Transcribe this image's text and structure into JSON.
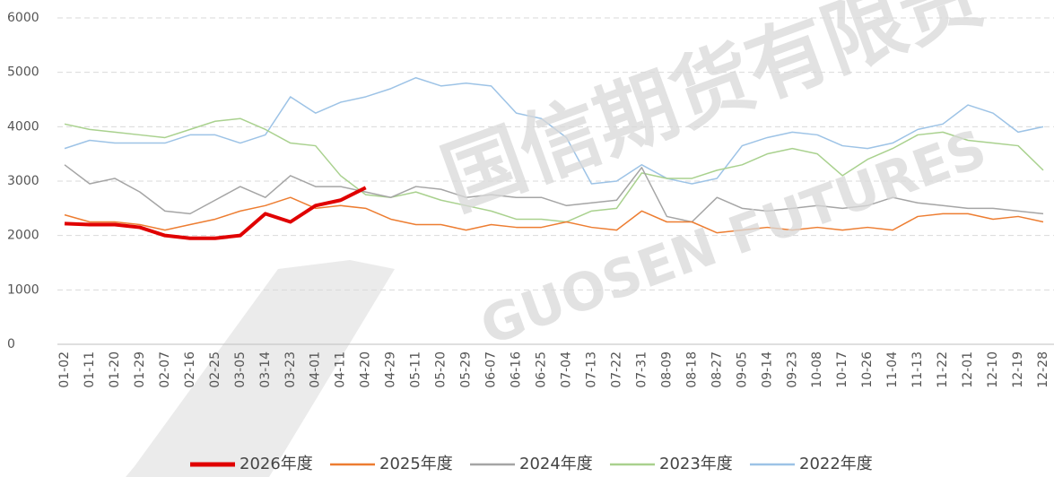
{
  "chart_data": {
    "type": "line",
    "watermark": [
      "国信期货有限责",
      "GUOSEN FUTURES"
    ],
    "categories": [
      "01-02",
      "01-11",
      "01-20",
      "01-29",
      "02-07",
      "02-16",
      "02-25",
      "03-05",
      "03-14",
      "03-23",
      "04-01",
      "04-11",
      "04-20",
      "04-29",
      "05-11",
      "05-20",
      "05-29",
      "06-07",
      "06-16",
      "06-25",
      "07-04",
      "07-13",
      "07-22",
      "07-31",
      "08-09",
      "08-18",
      "08-27",
      "09-05",
      "09-14",
      "09-23",
      "10-08",
      "10-17",
      "10-26",
      "11-04",
      "11-13",
      "11-22",
      "12-01",
      "12-10",
      "12-19",
      "12-28"
    ],
    "series": [
      {
        "name": "2026年度",
        "color": "#e00000",
        "width": 4,
        "values": [
          2220,
          2200,
          2200,
          2150,
          2000,
          1950,
          1950,
          2000,
          2400,
          2250,
          2550,
          2650,
          2880,
          null,
          null,
          null,
          null,
          null,
          null,
          null,
          null,
          null,
          null,
          null,
          null,
          null,
          null,
          null,
          null,
          null,
          null,
          null,
          null,
          null,
          null,
          null,
          null,
          null,
          null,
          null
        ]
      },
      {
        "name": "2025年度",
        "color": "#ed7d31",
        "width": 1.5,
        "values": [
          2380,
          2250,
          2250,
          2200,
          2100,
          2200,
          2300,
          2450,
          2550,
          2700,
          2500,
          2550,
          2500,
          2300,
          2200,
          2200,
          2100,
          2200,
          2150,
          2150,
          2250,
          2150,
          2100,
          2450,
          2250,
          2250,
          2050,
          2100,
          2150,
          2100,
          2150,
          2100,
          2150,
          2100,
          2350,
          2400,
          2400,
          2300,
          2350,
          2250
        ]
      },
      {
        "name": "2024年度",
        "color": "#a5a5a5",
        "width": 1.5,
        "values": [
          3300,
          2950,
          3050,
          2800,
          2450,
          2400,
          2650,
          2900,
          2700,
          3100,
          2900,
          2900,
          2800,
          2700,
          2900,
          2850,
          2700,
          2750,
          2700,
          2700,
          2550,
          2600,
          2650,
          3250,
          2350,
          2250,
          2700,
          2500,
          2450,
          2500,
          2550,
          2500,
          2550,
          2700,
          2600,
          2550,
          2500,
          2500,
          2450,
          2400
        ]
      },
      {
        "name": "2023年度",
        "color": "#a9d18e",
        "width": 1.5,
        "values": [
          4050,
          3950,
          3900,
          3850,
          3800,
          3950,
          4100,
          4150,
          3950,
          3700,
          3650,
          3100,
          2750,
          2700,
          2800,
          2650,
          2550,
          2450,
          2300,
          2300,
          2250,
          2450,
          2500,
          3150,
          3050,
          3050,
          3200,
          3300,
          3500,
          3600,
          3500,
          3100,
          3400,
          3600,
          3850,
          3900,
          3750,
          3700,
          3650,
          3200
        ]
      },
      {
        "name": "2022年度",
        "color": "#9dc3e6",
        "width": 1.5,
        "values": [
          3600,
          3750,
          3700,
          3700,
          3700,
          3850,
          3850,
          3700,
          3850,
          4550,
          4250,
          4450,
          4550,
          4700,
          4900,
          4750,
          4800,
          4750,
          4250,
          4150,
          3800,
          2950,
          3000,
          3300,
          3050,
          2950,
          3050,
          3650,
          3800,
          3900,
          3850,
          3650,
          3600,
          3700,
          3950,
          4050,
          4400,
          4250,
          3900,
          4000
        ]
      }
    ],
    "ylim": [
      0,
      6000
    ],
    "yticks": [
      0,
      1000,
      2000,
      3000,
      4000,
      5000,
      6000
    ],
    "grid": true,
    "legend": "bottom"
  }
}
